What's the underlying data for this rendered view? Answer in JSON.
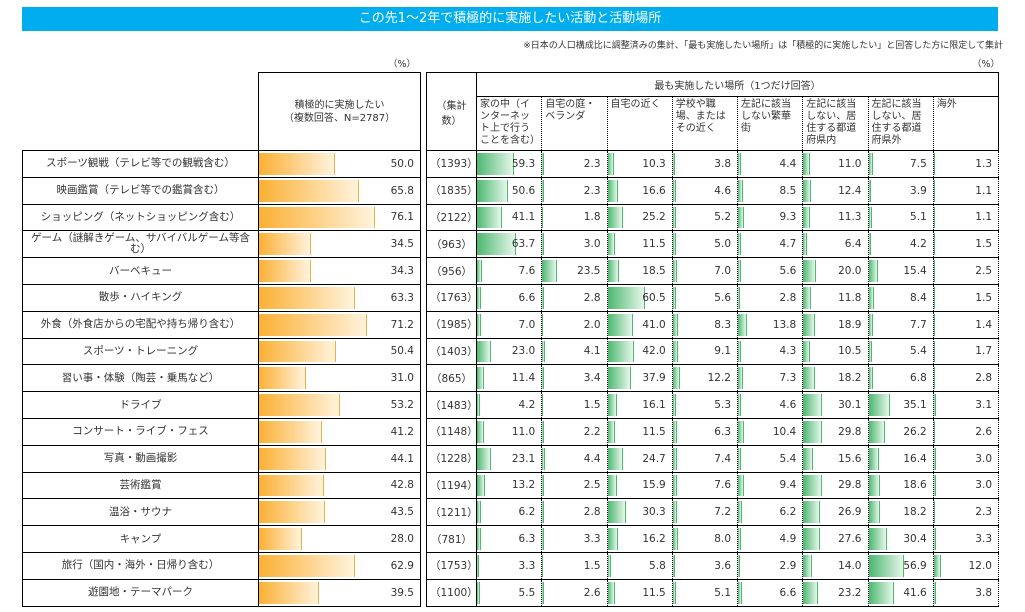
{
  "title": "この先1～2年で積極的に実施したい活動と活動場所",
  "note": "※日本の人口構成比に調整済みの集計、「最も実施したい場所」は「積極的に実施したい」と回答した方に限定して集計",
  "unit": "（%）",
  "colors": {
    "title_bg": "#00aeef",
    "orange": "#fbb034",
    "green": "#4cb870"
  },
  "chart_data": {
    "type": "table",
    "left_header": "積極的に実施したい\n（複数回答、N=2787）",
    "count_header": "（集計数）",
    "group_header": "最も実施したい場所（1つだけ回答）",
    "columns": [
      "家の中（インターネット上で行うことを含む）",
      "自宅の庭・ベランダ",
      "自宅の近く",
      "学校や職場、またはその近く",
      "左記に該当しない繁華街",
      "左記に該当しない、居住する都道府県内",
      "左記に該当しない、居住する都道府県外",
      "海外"
    ],
    "rows": [
      {
        "label": "スポーツ観戦（テレビ等での観戦含む）",
        "want": 50.0,
        "count": "（1393）",
        "values": [
          59.3,
          2.3,
          10.3,
          3.8,
          4.4,
          11.0,
          7.5,
          1.3
        ]
      },
      {
        "label": "映画鑑賞（テレビ等での鑑賞含む）",
        "want": 65.8,
        "count": "（1835）",
        "values": [
          50.6,
          2.3,
          16.6,
          4.6,
          8.5,
          12.4,
          3.9,
          1.1
        ]
      },
      {
        "label": "ショッピング（ネットショッピング含む）",
        "want": 76.1,
        "count": "（2122）",
        "values": [
          41.1,
          1.8,
          25.2,
          5.2,
          9.3,
          11.3,
          5.1,
          1.1
        ]
      },
      {
        "label": "ゲーム（謎解きゲーム、サバイバルゲーム等含む）",
        "want": 34.5,
        "count": "（963）",
        "values": [
          63.7,
          3.0,
          11.5,
          5.0,
          4.7,
          6.4,
          4.2,
          1.5
        ]
      },
      {
        "label": "バーベキュー",
        "want": 34.3,
        "count": "（956）",
        "values": [
          7.6,
          23.5,
          18.5,
          7.0,
          5.6,
          20.0,
          15.4,
          2.5
        ]
      },
      {
        "label": "散歩・ハイキング",
        "want": 63.3,
        "count": "（1763）",
        "values": [
          6.6,
          2.8,
          60.5,
          5.6,
          2.8,
          11.8,
          8.4,
          1.5
        ]
      },
      {
        "label": "外食（外食店からの宅配や持ち帰り含む）",
        "want": 71.2,
        "count": "（1985）",
        "values": [
          7.0,
          2.0,
          41.0,
          8.3,
          13.8,
          18.9,
          7.7,
          1.4
        ]
      },
      {
        "label": "スポーツ・トレーニング",
        "want": 50.4,
        "count": "（1403）",
        "values": [
          23.0,
          4.1,
          42.0,
          9.1,
          4.3,
          10.5,
          5.4,
          1.7
        ]
      },
      {
        "label": "習い事・体験（陶芸・乗馬など）",
        "want": 31.0,
        "count": "（865）",
        "values": [
          11.4,
          3.4,
          37.9,
          12.2,
          7.3,
          18.2,
          6.8,
          2.8
        ]
      },
      {
        "label": "ドライブ",
        "want": 53.2,
        "count": "（1483）",
        "values": [
          4.2,
          1.5,
          16.1,
          5.3,
          4.6,
          30.1,
          35.1,
          3.1
        ]
      },
      {
        "label": "コンサート・ライブ・フェス",
        "want": 41.2,
        "count": "（1148）",
        "values": [
          11.0,
          2.2,
          11.5,
          6.3,
          10.4,
          29.8,
          26.2,
          2.6
        ]
      },
      {
        "label": "写真・動画撮影",
        "want": 44.1,
        "count": "（1228）",
        "values": [
          23.1,
          4.4,
          24.7,
          7.4,
          5.4,
          15.6,
          16.4,
          3.0
        ]
      },
      {
        "label": "芸術鑑賞",
        "want": 42.8,
        "count": "（1194）",
        "values": [
          13.2,
          2.5,
          15.9,
          7.6,
          9.4,
          29.8,
          18.6,
          3.0
        ]
      },
      {
        "label": "温浴・サウナ",
        "want": 43.5,
        "count": "（1211）",
        "values": [
          6.2,
          2.8,
          30.3,
          7.2,
          6.2,
          26.9,
          18.2,
          2.3
        ]
      },
      {
        "label": "キャンプ",
        "want": 28.0,
        "count": "（781）",
        "values": [
          6.3,
          3.3,
          16.2,
          8.0,
          4.9,
          27.6,
          30.4,
          3.3
        ]
      },
      {
        "label": "旅行（国内・海外・日帰り含む）",
        "want": 62.9,
        "count": "（1753）",
        "values": [
          3.3,
          1.5,
          5.8,
          3.6,
          2.9,
          14.0,
          56.9,
          12.0
        ]
      },
      {
        "label": "遊園地・テーマパーク",
        "want": 39.5,
        "count": "（1100）",
        "values": [
          5.5,
          2.6,
          11.5,
          5.1,
          6.6,
          23.2,
          41.6,
          3.8
        ]
      }
    ]
  }
}
